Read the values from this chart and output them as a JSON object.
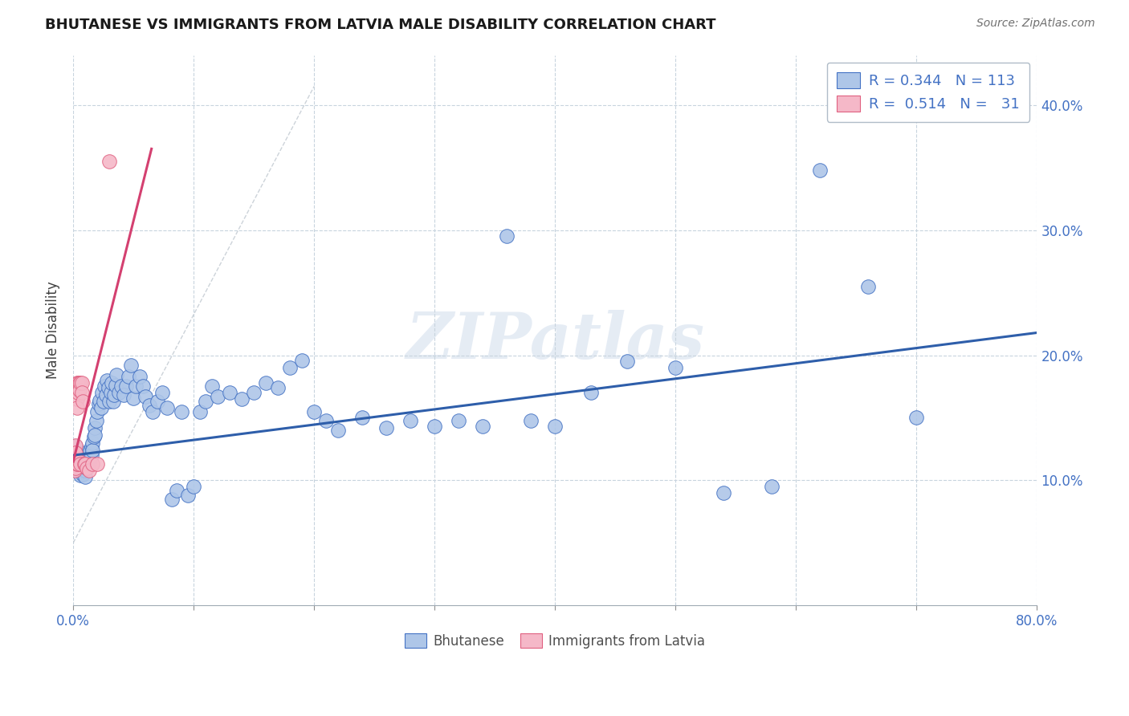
{
  "title": "BHUTANESE VS IMMIGRANTS FROM LATVIA MALE DISABILITY CORRELATION CHART",
  "source": "Source: ZipAtlas.com",
  "ylabel": "Male Disability",
  "ytick_labels": [
    "10.0%",
    "20.0%",
    "30.0%",
    "40.0%"
  ],
  "ytick_values": [
    0.1,
    0.2,
    0.3,
    0.4
  ],
  "xlim": [
    0.0,
    0.8
  ],
  "ylim": [
    0.0,
    0.44
  ],
  "watermark_text": "ZIPatlas",
  "legend_blue_R": "0.344",
  "legend_blue_N": "113",
  "legend_pink_R": "0.514",
  "legend_pink_N": "31",
  "blue_fill": "#aec6e8",
  "pink_fill": "#f5b8c8",
  "blue_edge": "#4472c4",
  "pink_edge": "#e06080",
  "blue_line_color": "#2e5eaa",
  "pink_line_color": "#d44070",
  "gray_line_color": "#c0c8d0",
  "blue_trend_x": [
    0.0,
    0.8
  ],
  "blue_trend_y": [
    0.12,
    0.218
  ],
  "pink_trend_x": [
    0.0,
    0.065
  ],
  "pink_trend_y": [
    0.115,
    0.365
  ],
  "gray_trend_x": [
    0.0,
    0.2
  ],
  "gray_trend_y": [
    0.05,
    0.415
  ],
  "blue_x": [
    0.002,
    0.003,
    0.003,
    0.004,
    0.004,
    0.004,
    0.005,
    0.005,
    0.005,
    0.006,
    0.006,
    0.006,
    0.007,
    0.007,
    0.007,
    0.008,
    0.008,
    0.008,
    0.008,
    0.009,
    0.009,
    0.009,
    0.01,
    0.01,
    0.01,
    0.01,
    0.01,
    0.011,
    0.011,
    0.011,
    0.012,
    0.012,
    0.013,
    0.013,
    0.014,
    0.014,
    0.015,
    0.015,
    0.016,
    0.016,
    0.017,
    0.018,
    0.018,
    0.019,
    0.02,
    0.021,
    0.022,
    0.023,
    0.024,
    0.025,
    0.026,
    0.027,
    0.028,
    0.029,
    0.03,
    0.031,
    0.032,
    0.033,
    0.034,
    0.035,
    0.036,
    0.038,
    0.04,
    0.042,
    0.044,
    0.046,
    0.048,
    0.05,
    0.052,
    0.055,
    0.058,
    0.06,
    0.063,
    0.066,
    0.07,
    0.074,
    0.078,
    0.082,
    0.086,
    0.09,
    0.095,
    0.1,
    0.105,
    0.11,
    0.115,
    0.12,
    0.13,
    0.14,
    0.15,
    0.16,
    0.17,
    0.18,
    0.19,
    0.2,
    0.21,
    0.22,
    0.24,
    0.26,
    0.28,
    0.3,
    0.32,
    0.34,
    0.36,
    0.38,
    0.4,
    0.43,
    0.46,
    0.5,
    0.54,
    0.58,
    0.62,
    0.66,
    0.7
  ],
  "blue_y": [
    0.127,
    0.122,
    0.115,
    0.118,
    0.112,
    0.108,
    0.12,
    0.113,
    0.107,
    0.117,
    0.11,
    0.104,
    0.119,
    0.113,
    0.108,
    0.121,
    0.115,
    0.11,
    0.105,
    0.118,
    0.112,
    0.108,
    0.122,
    0.117,
    0.113,
    0.108,
    0.103,
    0.12,
    0.115,
    0.11,
    0.119,
    0.113,
    0.121,
    0.115,
    0.124,
    0.118,
    0.127,
    0.12,
    0.13,
    0.124,
    0.135,
    0.142,
    0.136,
    0.148,
    0.155,
    0.161,
    0.164,
    0.158,
    0.17,
    0.163,
    0.175,
    0.168,
    0.18,
    0.174,
    0.163,
    0.17,
    0.178,
    0.163,
    0.168,
    0.176,
    0.184,
    0.17,
    0.175,
    0.168,
    0.175,
    0.183,
    0.192,
    0.166,
    0.175,
    0.183,
    0.175,
    0.167,
    0.16,
    0.155,
    0.163,
    0.17,
    0.158,
    0.085,
    0.092,
    0.155,
    0.088,
    0.095,
    0.155,
    0.163,
    0.175,
    0.167,
    0.17,
    0.165,
    0.17,
    0.178,
    0.174,
    0.19,
    0.196,
    0.155,
    0.148,
    0.14,
    0.15,
    0.142,
    0.148,
    0.143,
    0.148,
    0.143,
    0.295,
    0.148,
    0.143,
    0.17,
    0.195,
    0.19,
    0.09,
    0.095,
    0.348,
    0.255,
    0.15
  ],
  "pink_x": [
    0.001,
    0.001,
    0.001,
    0.001,
    0.002,
    0.002,
    0.002,
    0.002,
    0.003,
    0.003,
    0.003,
    0.003,
    0.003,
    0.004,
    0.004,
    0.004,
    0.005,
    0.005,
    0.005,
    0.006,
    0.006,
    0.007,
    0.007,
    0.008,
    0.009,
    0.01,
    0.011,
    0.013,
    0.016,
    0.02,
    0.03
  ],
  "pink_y": [
    0.122,
    0.117,
    0.113,
    0.108,
    0.128,
    0.122,
    0.115,
    0.11,
    0.178,
    0.172,
    0.165,
    0.158,
    0.113,
    0.178,
    0.17,
    0.113,
    0.178,
    0.172,
    0.115,
    0.178,
    0.113,
    0.178,
    0.17,
    0.163,
    0.113,
    0.113,
    0.11,
    0.108,
    0.113,
    0.113,
    0.355
  ]
}
